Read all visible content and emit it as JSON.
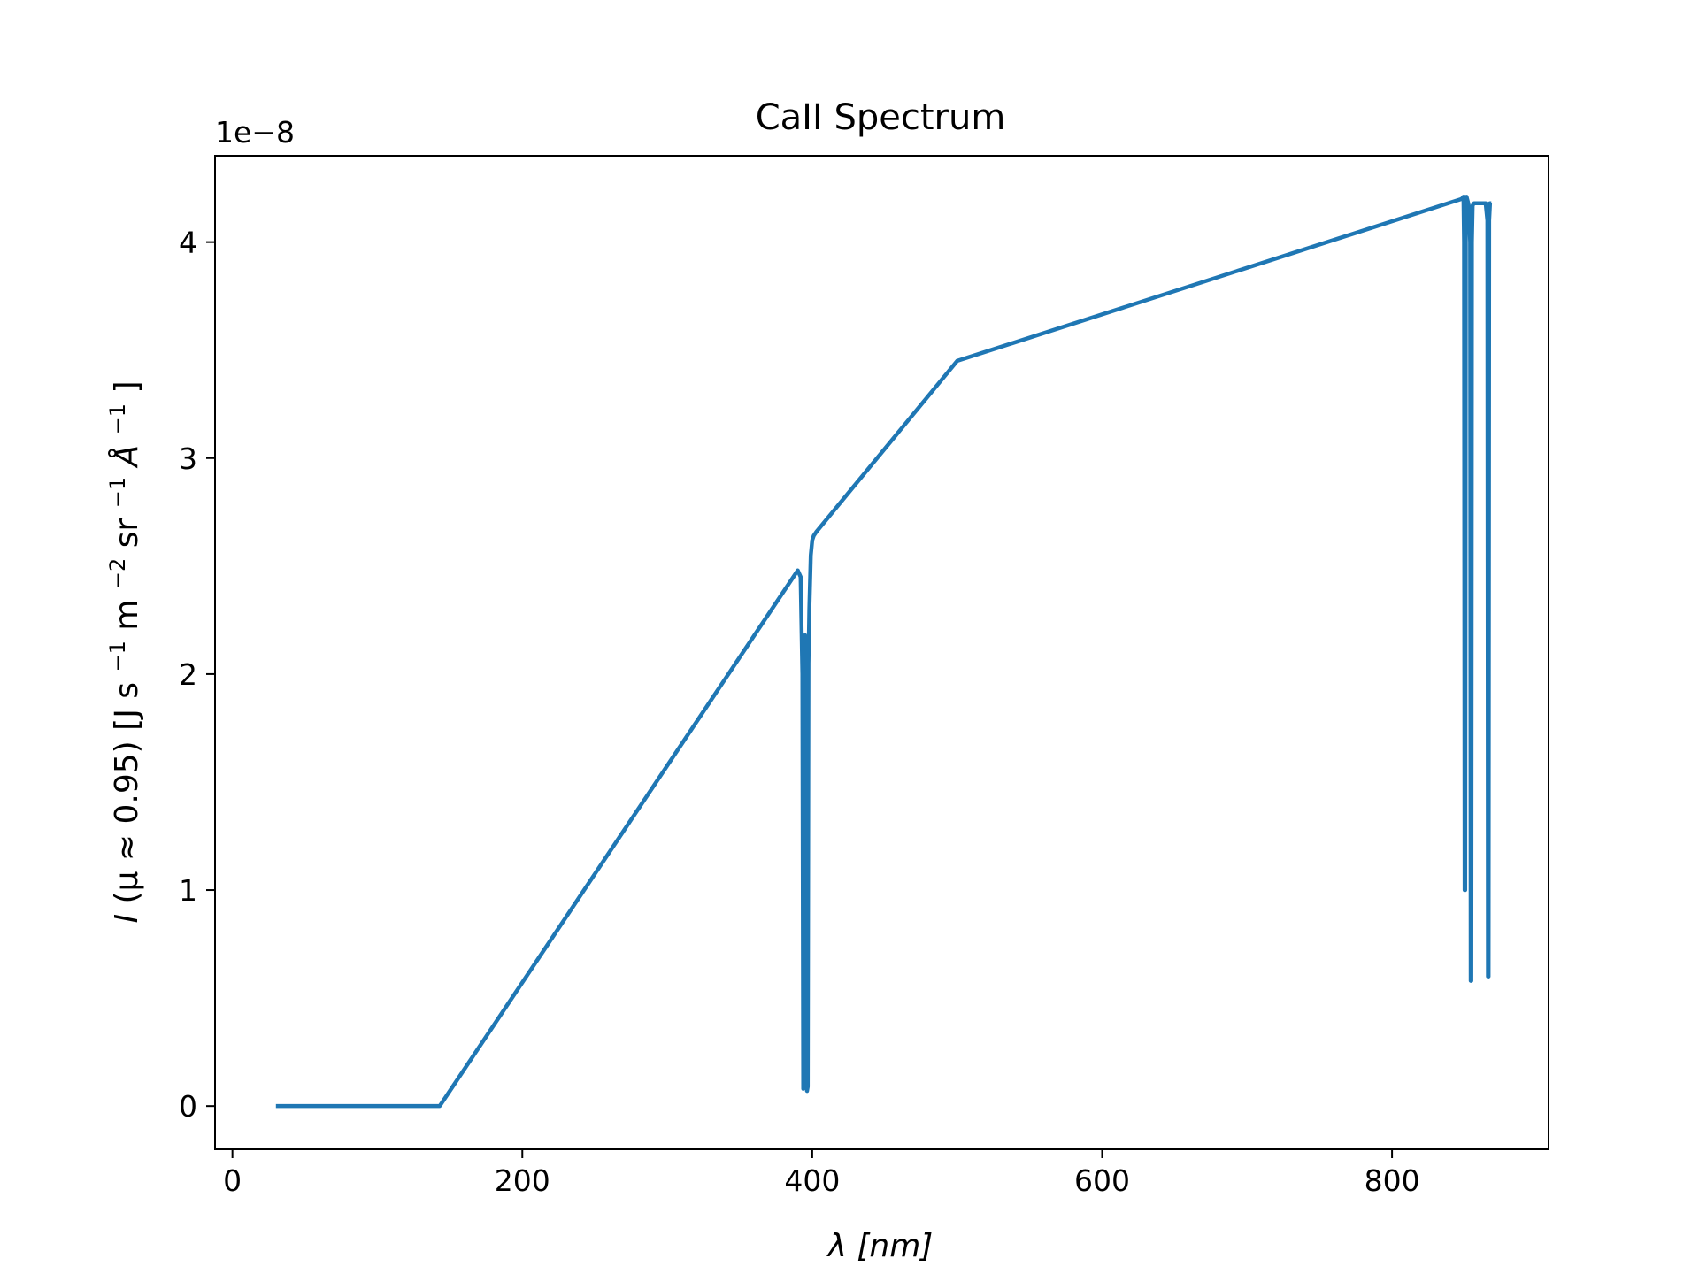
{
  "chart_data": {
    "type": "line",
    "title": "CaII Spectrum",
    "xlabel": "λ [nm]",
    "ylabel": {
      "prefix": "I",
      "mu_part": "(μ ≈ 0.95) [J s",
      "e1": "−1",
      "m_part": " m",
      "e2": "−2",
      "sr_part": " sr",
      "e3": "−1",
      "angstrom": " Å",
      "e4": "−1",
      "close": "]"
    },
    "y_offset_text": "1e−8",
    "xlim": [
      -12,
      908
    ],
    "ylim": [
      -0.2,
      4.4
    ],
    "x_ticks": [
      0,
      200,
      400,
      600,
      800
    ],
    "x_tick_labels": [
      "0",
      "200",
      "400",
      "600",
      "800"
    ],
    "y_ticks": [
      0,
      1,
      2,
      3,
      4
    ],
    "y_tick_labels": [
      "0",
      "1",
      "2",
      "3",
      "4"
    ],
    "grid": false,
    "color": "#1f77b4",
    "series": [
      {
        "x": [
          30,
          143,
          390,
          392,
          393.2,
          393.8,
          394.3,
          395,
          395.8,
          396.4,
          396.9,
          397.4,
          398,
          399,
          400,
          401,
          403,
          500,
          848,
          849.3,
          849.7,
          850.1,
          850.5,
          850.9,
          851.4,
          852.2,
          853.2,
          853.9,
          854.3,
          854.7,
          855.1,
          855.6,
          856.6,
          860,
          864.6,
          865.8,
          866.2,
          866.6,
          867,
          867.6,
          868.5
        ],
        "y": [
          0,
          0,
          2.48,
          2.45,
          2.0,
          0.08,
          0.1,
          2.18,
          2.0,
          0.07,
          0.09,
          2.05,
          2.3,
          2.55,
          2.62,
          2.64,
          2.66,
          3.45,
          4.2,
          4.21,
          4.0,
          1.0,
          1.0,
          4.0,
          4.21,
          4.19,
          4.16,
          4.0,
          0.58,
          0.58,
          4.0,
          4.17,
          4.18,
          4.18,
          4.18,
          4.1,
          0.6,
          0.6,
          4.1,
          4.18,
          4.18
        ]
      }
    ]
  }
}
